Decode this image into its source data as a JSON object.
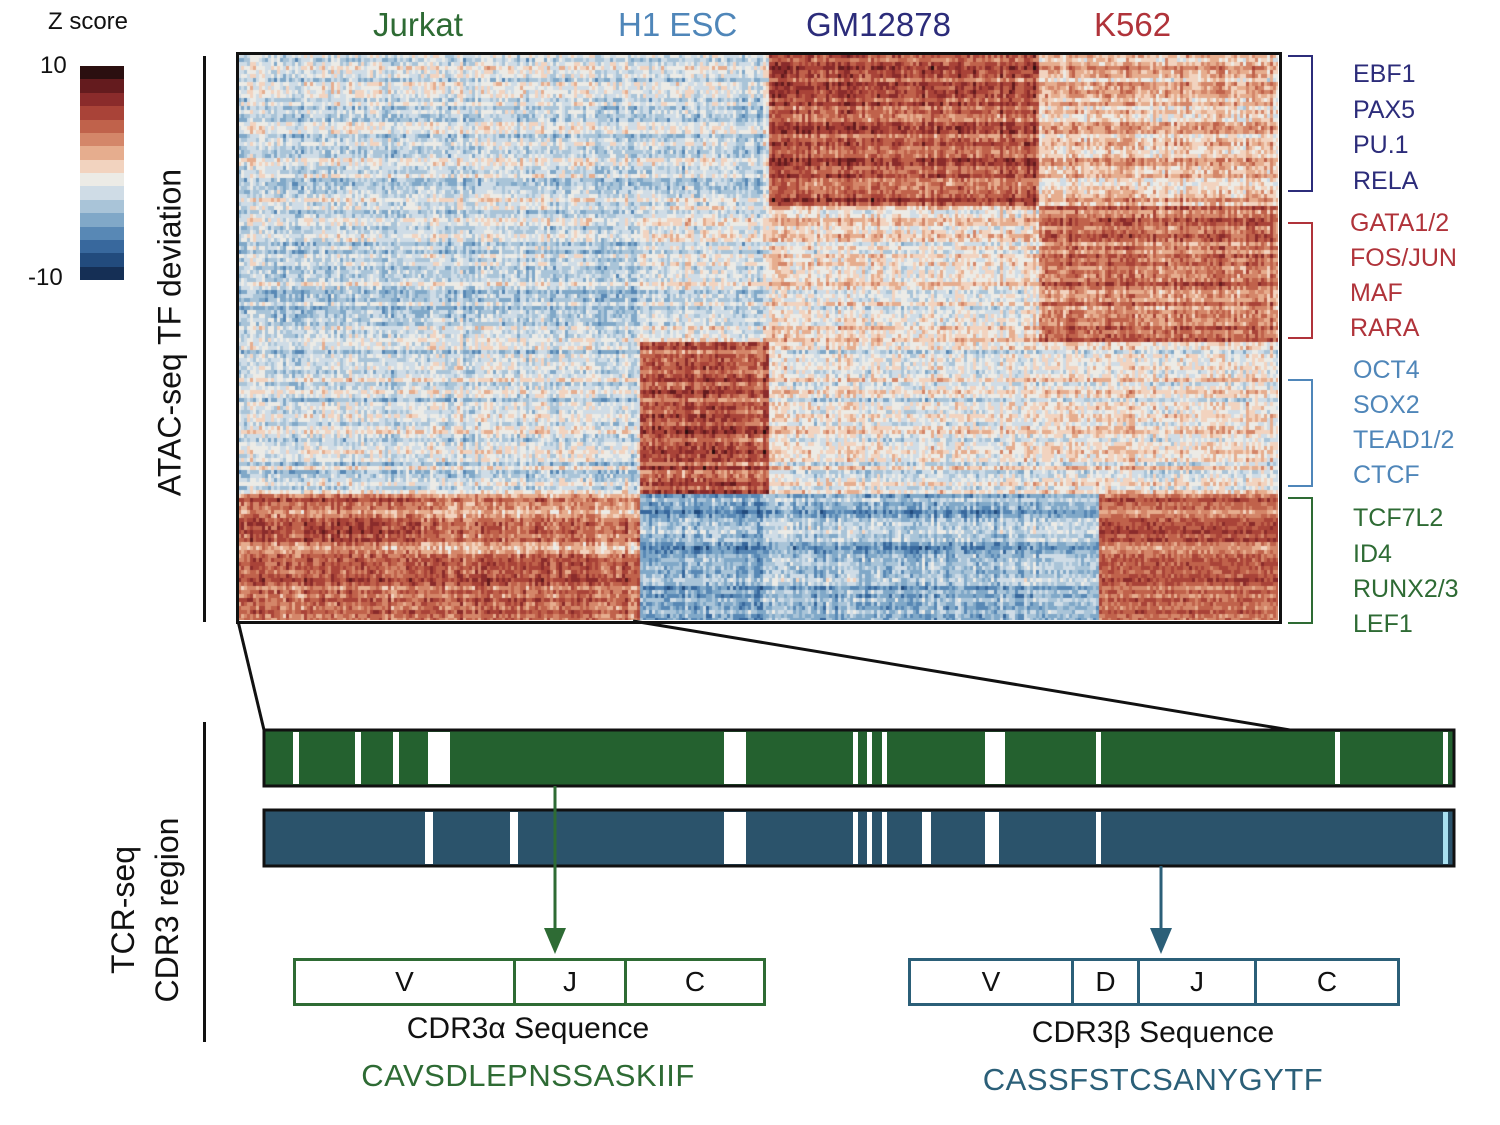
{
  "colorbar": {
    "title": "Z score",
    "max_label": "10",
    "min_label": "-10",
    "colors": [
      "#2b0f10",
      "#641b1e",
      "#8a2b2b",
      "#a94338",
      "#c0624b",
      "#d48669",
      "#e6ad8e",
      "#f2d3bf",
      "#ecebe6",
      "#cfdce6",
      "#a9c4d8",
      "#80a8c8",
      "#5888b5",
      "#38689d",
      "#224b7d",
      "#152f55"
    ]
  },
  "top_axis_label": "ATAC-seq TF deviation",
  "bottom_axis_label": {
    "line1": "TCR-seq",
    "line2": "CDR3 region"
  },
  "cell_lines": [
    {
      "name": "Jurkat",
      "color": "#2e6b34"
    },
    {
      "name": "H1 ESC",
      "color": "#4f86b9"
    },
    {
      "name": "GM12878",
      "color": "#2c2c7a"
    },
    {
      "name": "K562",
      "color": "#b0333a"
    }
  ],
  "tf_groups": [
    {
      "color": "#2c2c7a",
      "tfs": [
        "EBF1",
        "PAX5",
        "PU.1",
        "RELA"
      ]
    },
    {
      "color": "#b0333a",
      "tfs": [
        "GATA1/2",
        "FOS/JUN",
        "MAF",
        "RARA"
      ]
    },
    {
      "color": "#4f86b9",
      "tfs": [
        "OCT4",
        "SOX2",
        "TEAD1/2",
        "CTCF"
      ]
    },
    {
      "color": "#2e6b34",
      "tfs": [
        "TCF7L2",
        "ID4",
        "RUNX2/3",
        "LEF1"
      ]
    }
  ],
  "tcr_bars": {
    "alpha_color": "#24612f",
    "beta_color": "#2b536b"
  },
  "alpha": {
    "segments": [
      "V",
      "J",
      "C"
    ],
    "title": "CDR3α Sequence",
    "sequence": "CAVSDLEPNSSASKIIF",
    "color": "#2e6b34"
  },
  "beta": {
    "segments": [
      "V",
      "D",
      "J",
      "C"
    ],
    "title": "CDR3β Sequence",
    "sequence": "CASSFSTCSANYGYTF",
    "color": "#2b5f78"
  }
}
